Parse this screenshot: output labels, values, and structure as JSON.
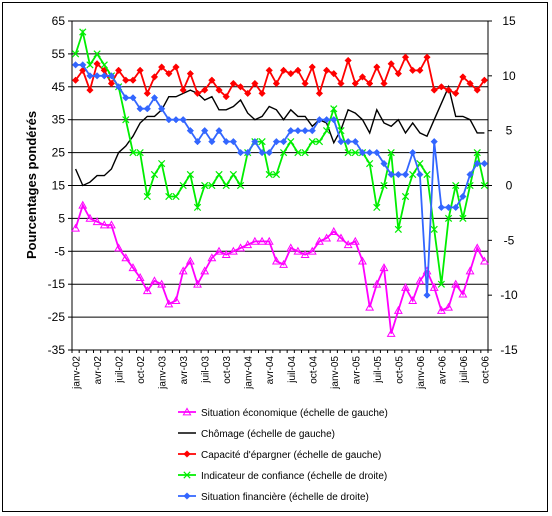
{
  "chart_data": {
    "type": "line",
    "ylabel": "Pourcentages pondérés",
    "y_left": {
      "min": -35,
      "max": 65,
      "ticks": [
        -35,
        -25,
        -15,
        -5,
        5,
        15,
        25,
        35,
        45,
        55,
        65
      ]
    },
    "y_right": {
      "min": -15,
      "max": 15,
      "ticks": [
        -15,
        -10,
        -5,
        0,
        5,
        10,
        15
      ]
    },
    "grid": true,
    "legend_position": "bottom",
    "x_tick_labels": [
      "janv-02",
      "avr-02",
      "juil-02",
      "oct-02",
      "janv-03",
      "avr-03",
      "juil-03",
      "oct-03",
      "janv-04",
      "avr-04",
      "juil-04",
      "oct-04",
      "janv-05",
      "avr-05",
      "juil-05",
      "oct-05",
      "janv-06",
      "avr-06",
      "juil-06",
      "oct-06"
    ],
    "x": [
      "janv-02",
      "févr-02",
      "mars-02",
      "avr-02",
      "mai-02",
      "juin-02",
      "juil-02",
      "août-02",
      "sept-02",
      "oct-02",
      "nov-02",
      "déc-02",
      "janv-03",
      "févr-03",
      "mars-03",
      "avr-03",
      "mai-03",
      "juin-03",
      "juil-03",
      "août-03",
      "sept-03",
      "oct-03",
      "nov-03",
      "déc-03",
      "janv-04",
      "févr-04",
      "mars-04",
      "avr-04",
      "mai-04",
      "juin-04",
      "juil-04",
      "août-04",
      "sept-04",
      "oct-04",
      "nov-04",
      "déc-04",
      "janv-05",
      "févr-05",
      "mars-05",
      "avr-05",
      "mai-05",
      "juin-05",
      "juil-05",
      "août-05",
      "sept-05",
      "oct-05",
      "nov-05",
      "déc-05",
      "janv-06",
      "févr-06",
      "mars-06",
      "avr-06",
      "mai-06",
      "juin-06",
      "juil-06",
      "août-06",
      "sept-06",
      "oct-06"
    ],
    "series": [
      {
        "name": "Situation économique (échelle de gauche)",
        "axis": "left",
        "color": "#ff00ff",
        "marker": "triangle-open",
        "values": [
          2,
          9,
          5,
          4,
          3,
          3,
          -4,
          -7,
          -10,
          -13,
          -17,
          -14,
          -15,
          -21,
          -20,
          -11,
          -8,
          -15,
          -11,
          -7,
          -5,
          -6,
          -5,
          -4,
          -3,
          -2,
          -2,
          -2,
          -8,
          -9,
          -4,
          -5,
          -6,
          -5,
          -2,
          -1,
          1,
          -1,
          -3,
          -2,
          -8,
          -22,
          -15,
          -10,
          -30,
          -23,
          -16,
          -20,
          -14,
          -11,
          -16,
          -23,
          -22,
          -15,
          -18,
          -11,
          -4,
          -8
        ]
      },
      {
        "name": "Chômage (échelle de gauche)",
        "axis": "left",
        "color": "#000000",
        "marker": "none",
        "values": [
          20,
          15,
          16,
          18,
          18,
          20,
          25,
          27,
          30,
          34,
          36,
          36,
          38,
          42,
          42,
          43,
          44,
          43,
          41,
          42,
          38,
          38,
          39,
          41,
          37,
          35,
          36,
          39,
          38,
          35,
          38,
          36,
          36,
          33,
          35,
          34,
          28,
          32,
          38,
          37,
          35,
          31,
          38,
          34,
          33,
          35,
          31,
          34,
          31,
          30,
          35,
          40,
          45,
          36,
          36,
          35,
          31,
          31
        ]
      },
      {
        "name": "Capacité d'épargner (échelle de gauche)",
        "axis": "left",
        "color": "#ff0000",
        "marker": "diamond",
        "values": [
          47,
          50,
          44,
          52,
          50,
          46,
          50,
          47,
          47,
          50,
          43,
          48,
          51,
          49,
          51,
          44,
          49,
          43,
          44,
          47,
          44,
          42,
          46,
          45,
          43,
          46,
          43,
          50,
          46,
          50,
          49,
          50,
          46,
          51,
          43,
          50,
          49,
          46,
          53,
          46,
          48,
          46,
          51,
          46,
          52,
          49,
          54,
          50,
          50,
          54,
          44,
          45,
          44,
          43,
          48,
          46,
          44,
          47
        ]
      },
      {
        "name": "Indicateur de confiance (échelle de droite)",
        "axis": "right",
        "color": "#00ee00",
        "marker": "cross",
        "values": [
          12,
          14,
          11,
          12,
          11,
          10,
          9,
          6,
          3,
          3,
          -1,
          1,
          2,
          -1,
          -1,
          0,
          1,
          -2,
          0,
          0,
          1,
          0,
          1,
          0,
          3,
          4,
          4,
          1,
          1,
          3,
          4,
          3,
          3,
          4,
          4,
          5,
          7,
          5,
          3,
          3,
          3,
          2,
          -2,
          0,
          3,
          -4,
          -1,
          1,
          2,
          1,
          -4,
          -9,
          -3,
          0,
          -3,
          0,
          3,
          0
        ]
      },
      {
        "name": "Situation financière (échelle de droite)",
        "axis": "right",
        "color": "#3366ff",
        "marker": "diamond",
        "values": [
          11,
          11,
          10,
          10,
          10,
          10,
          9,
          8,
          8,
          7,
          7,
          8,
          7,
          6,
          6,
          6,
          5,
          4,
          5,
          4,
          5,
          4,
          4,
          3,
          3,
          4,
          3,
          3,
          4,
          4,
          5,
          5,
          5,
          5,
          6,
          6,
          6,
          4,
          4,
          4,
          3,
          3,
          3,
          2,
          1,
          1,
          1,
          3,
          1,
          -10,
          4,
          -2,
          -2,
          -2,
          -1,
          1,
          2,
          2
        ]
      }
    ]
  }
}
